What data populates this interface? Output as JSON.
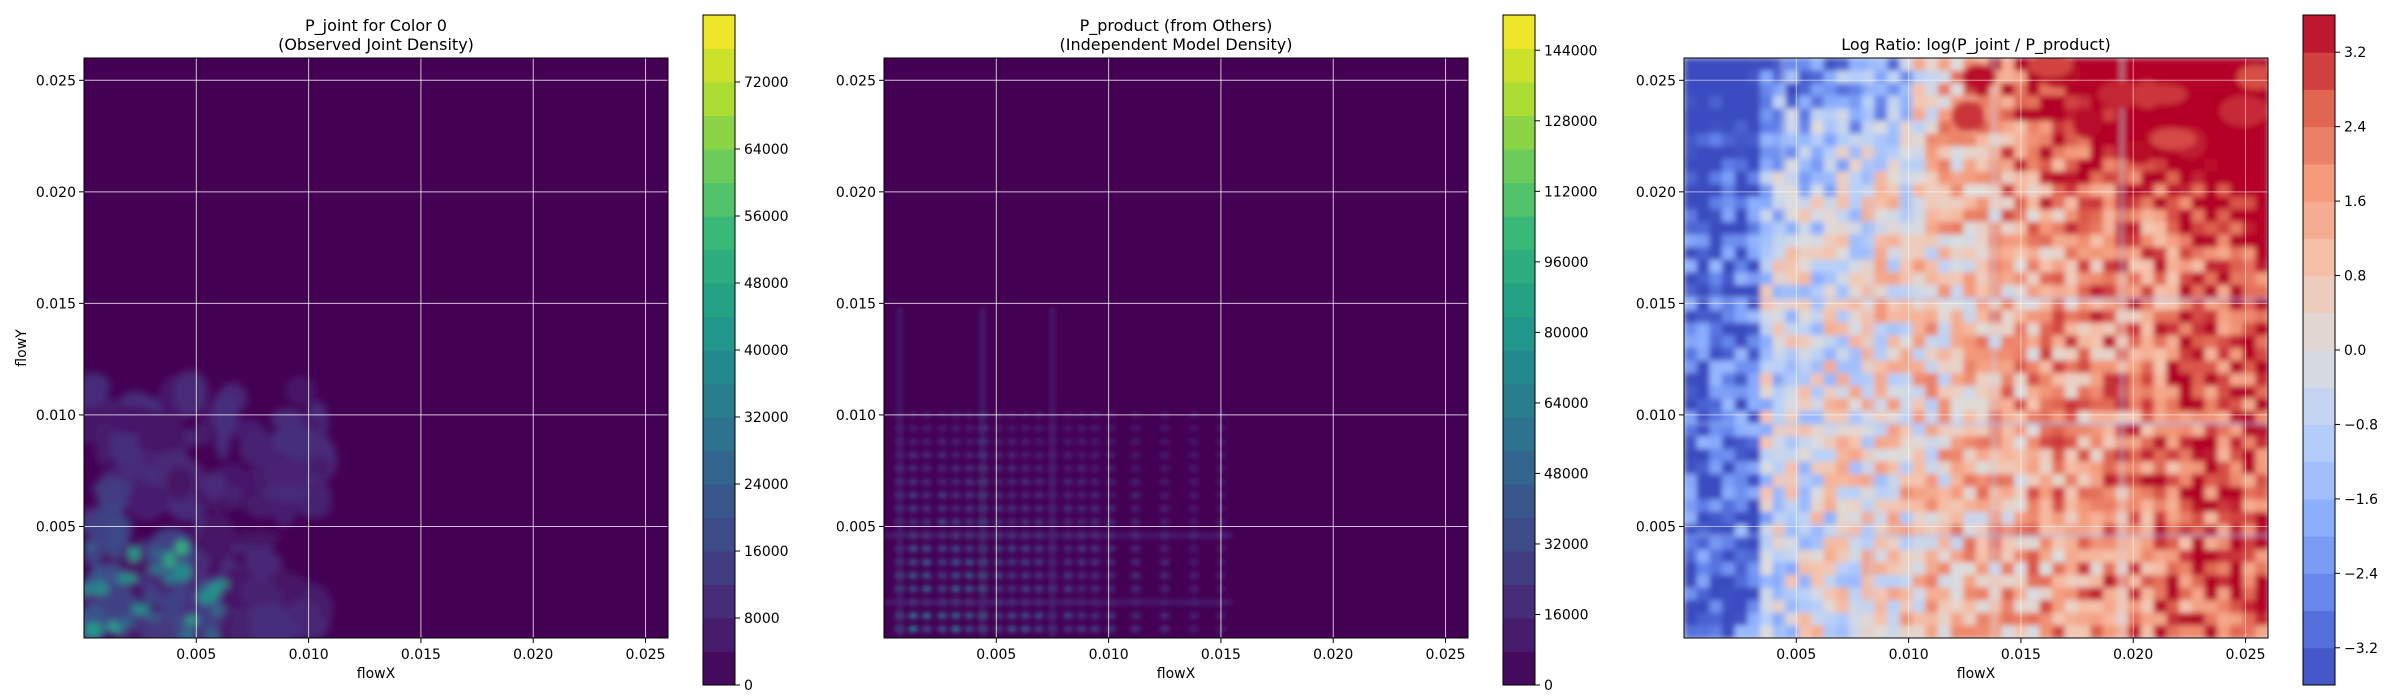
{
  "chart_data": [
    {
      "type": "heatmap",
      "title": "P_joint for Color 0\n(Observed Joint Density)",
      "xlabel": "flowX",
      "ylabel": "flowY",
      "xlim": [
        0,
        0.026
      ],
      "ylim": [
        0,
        0.026
      ],
      "x_ticks": [
        "0.005",
        "0.010",
        "0.015",
        "0.020",
        "0.025"
      ],
      "y_ticks": [
        "0.005",
        "0.010",
        "0.015",
        "0.020",
        "0.025"
      ],
      "x_tick_values": [
        0.005,
        0.01,
        0.015,
        0.02,
        0.025
      ],
      "y_tick_values": [
        0.005,
        0.01,
        0.015,
        0.02,
        0.025
      ],
      "grid": true,
      "colormap": "viridis",
      "colorbar": {
        "ticks": [
          "0",
          "8000",
          "16000",
          "24000",
          "32000",
          "40000",
          "48000",
          "56000",
          "64000",
          "72000"
        ],
        "tick_values": [
          0,
          8000,
          16000,
          24000,
          32000,
          40000,
          48000,
          56000,
          64000,
          72000
        ],
        "range": [
          0,
          80000
        ]
      }
    },
    {
      "type": "heatmap",
      "title": "P_product (from Others)\n(Independent Model Density)",
      "xlabel": "flowX",
      "ylabel": "",
      "xlim": [
        0,
        0.026
      ],
      "ylim": [
        0,
        0.026
      ],
      "x_ticks": [
        "0.005",
        "0.010",
        "0.015",
        "0.020",
        "0.025"
      ],
      "y_ticks": [
        "0.005",
        "0.010",
        "0.015",
        "0.020",
        "0.025"
      ],
      "x_tick_values": [
        0.005,
        0.01,
        0.015,
        0.02,
        0.025
      ],
      "y_tick_values": [
        0.005,
        0.01,
        0.015,
        0.02,
        0.025
      ],
      "grid": true,
      "colormap": "viridis",
      "colorbar": {
        "ticks": [
          "0",
          "16000",
          "32000",
          "48000",
          "64000",
          "80000",
          "96000",
          "112000",
          "128000",
          "144000"
        ],
        "tick_values": [
          0,
          16000,
          32000,
          48000,
          64000,
          80000,
          96000,
          112000,
          128000,
          144000
        ],
        "range": [
          0,
          152000
        ]
      }
    },
    {
      "type": "heatmap",
      "title": "Log Ratio: log(P_joint / P_product)",
      "xlabel": "flowX",
      "ylabel": "",
      "xlim": [
        0,
        0.026
      ],
      "ylim": [
        0,
        0.026
      ],
      "x_ticks": [
        "0.005",
        "0.010",
        "0.015",
        "0.020",
        "0.025"
      ],
      "y_ticks": [
        "0.005",
        "0.010",
        "0.015",
        "0.020",
        "0.025"
      ],
      "x_tick_values": [
        0.005,
        0.01,
        0.015,
        0.02,
        0.025
      ],
      "y_tick_values": [
        0.005,
        0.01,
        0.015,
        0.02,
        0.025
      ],
      "grid": true,
      "colormap": "coolwarm",
      "colorbar": {
        "ticks": [
          "−3.2",
          "−2.4",
          "−1.6",
          "−0.8",
          "0.0",
          "0.8",
          "1.6",
          "2.4",
          "3.2"
        ],
        "tick_values": [
          -3.2,
          -2.4,
          -1.6,
          -0.8,
          0.0,
          0.8,
          1.6,
          2.4,
          3.2
        ],
        "range": [
          -3.6,
          3.6
        ]
      }
    }
  ]
}
